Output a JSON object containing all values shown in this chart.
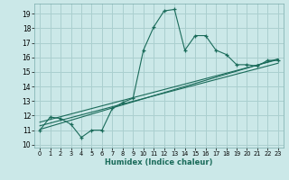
{
  "bg_color": "#cbe8e8",
  "grid_color": "#aacfcf",
  "line_color": "#1a6b5a",
  "xlabel": "Humidex (Indice chaleur)",
  "xlim": [
    -0.5,
    23.5
  ],
  "ylim": [
    9.8,
    19.7
  ],
  "yticks": [
    10,
    11,
    12,
    13,
    14,
    15,
    16,
    17,
    18,
    19
  ],
  "xticks": [
    0,
    1,
    2,
    3,
    4,
    5,
    6,
    7,
    8,
    9,
    10,
    11,
    12,
    13,
    14,
    15,
    16,
    17,
    18,
    19,
    20,
    21,
    22,
    23
  ],
  "line1_x": [
    0,
    1,
    2,
    3,
    4,
    5,
    6,
    7,
    8,
    9,
    10,
    11,
    12,
    13,
    14,
    15,
    16,
    17,
    18,
    19,
    20,
    21,
    22,
    23
  ],
  "line1_y": [
    11.0,
    11.9,
    11.8,
    11.4,
    10.5,
    11.0,
    11.0,
    12.5,
    12.9,
    13.2,
    16.5,
    18.1,
    19.2,
    19.3,
    16.5,
    17.5,
    17.5,
    16.5,
    16.2,
    15.5,
    15.5,
    15.4,
    15.8,
    15.8
  ],
  "line2_x": [
    0,
    23
  ],
  "line2_y": [
    11.05,
    15.9
  ],
  "line3_x": [
    0,
    23
  ],
  "line3_y": [
    11.3,
    15.6
  ],
  "line4_x": [
    0,
    23
  ],
  "line4_y": [
    11.55,
    15.85
  ]
}
